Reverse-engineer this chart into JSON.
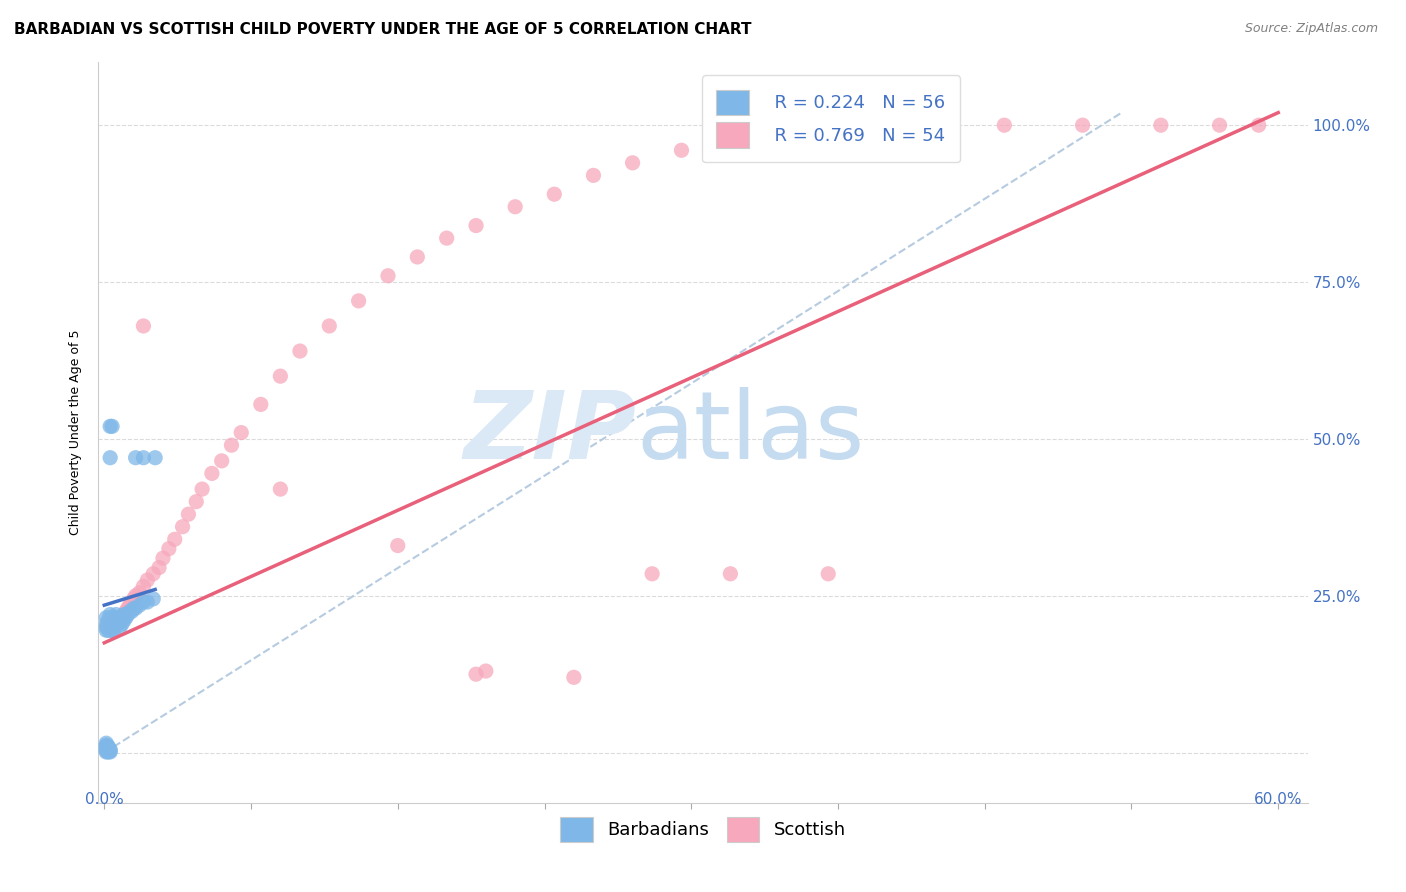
{
  "title": "BARBADIAN VS SCOTTISH CHILD POVERTY UNDER THE AGE OF 5 CORRELATION CHART",
  "source": "Source: ZipAtlas.com",
  "ylabel": "Child Poverty Under the Age of 5",
  "xmin": -0.003,
  "xmax": 0.615,
  "ymin": -0.08,
  "ymax": 1.1,
  "legend_r_barbadian": "R = 0.224",
  "legend_n_barbadian": "N = 56",
  "legend_r_scottish": "R = 0.769",
  "legend_n_scottish": "N = 54",
  "barbadian_color": "#7eb7e8",
  "scottish_color": "#f7a8bc",
  "barbadian_line_color": "#4472c4",
  "scottish_line_color": "#e8607a",
  "ref_line_color": "#aec6dd",
  "background_color": "#ffffff",
  "grid_color": "#cccccc",
  "title_fontsize": 11,
  "axis_label_fontsize": 9,
  "tick_fontsize": 10,
  "legend_fontsize": 13,
  "source_fontsize": 9,
  "barbadian_x": [
    0.001,
    0.001,
    0.001,
    0.001,
    0.002,
    0.002,
    0.002,
    0.002,
    0.003,
    0.003,
    0.003,
    0.003,
    0.003,
    0.003,
    0.003,
    0.004,
    0.004,
    0.004,
    0.004,
    0.004,
    0.005,
    0.005,
    0.005,
    0.005,
    0.005,
    0.006,
    0.006,
    0.006,
    0.007,
    0.007,
    0.007,
    0.008,
    0.008,
    0.008,
    0.009,
    0.009,
    0.01,
    0.01,
    0.01,
    0.011,
    0.011,
    0.012,
    0.013,
    0.014,
    0.015,
    0.016,
    0.018,
    0.02,
    0.022,
    0.025,
    0.003,
    0.004,
    0.003,
    0.016,
    0.02,
    0.026
  ],
  "barbadian_y": [
    0.205,
    0.215,
    0.195,
    0.2,
    0.205,
    0.21,
    0.195,
    0.2,
    0.21,
    0.22,
    0.215,
    0.205,
    0.195,
    0.2,
    0.21,
    0.205,
    0.215,
    0.2,
    0.21,
    0.195,
    0.205,
    0.215,
    0.21,
    0.2,
    0.195,
    0.21,
    0.22,
    0.205,
    0.215,
    0.21,
    0.205,
    0.215,
    0.21,
    0.2,
    0.215,
    0.205,
    0.22,
    0.215,
    0.21,
    0.22,
    0.215,
    0.22,
    0.225,
    0.225,
    0.23,
    0.23,
    0.235,
    0.24,
    0.24,
    0.245,
    0.52,
    0.52,
    0.47,
    0.47,
    0.47,
    0.47
  ],
  "barbadian_y_neg": [
    0.001,
    0.003,
    0.006,
    0.008,
    0.01,
    0.012,
    0.015,
    0.001,
    0.003,
    0.005,
    0.008,
    0.01,
    0.001,
    0.003,
    0.005
  ],
  "barbadian_x_neg": [
    0.001,
    0.001,
    0.001,
    0.001,
    0.001,
    0.001,
    0.001,
    0.002,
    0.002,
    0.002,
    0.002,
    0.002,
    0.003,
    0.003,
    0.003
  ],
  "scottish_x": [
    0.003,
    0.004,
    0.005,
    0.006,
    0.007,
    0.008,
    0.009,
    0.01,
    0.011,
    0.012,
    0.013,
    0.014,
    0.015,
    0.016,
    0.018,
    0.02,
    0.022,
    0.025,
    0.028,
    0.03,
    0.033,
    0.036,
    0.04,
    0.043,
    0.047,
    0.05,
    0.055,
    0.06,
    0.065,
    0.07,
    0.08,
    0.09,
    0.1,
    0.115,
    0.13,
    0.145,
    0.16,
    0.175,
    0.19,
    0.21,
    0.23,
    0.25,
    0.27,
    0.295,
    0.32,
    0.35,
    0.38,
    0.42,
    0.46,
    0.5,
    0.54,
    0.57,
    0.59,
    0.02
  ],
  "scottish_y": [
    0.2,
    0.205,
    0.21,
    0.205,
    0.215,
    0.21,
    0.215,
    0.22,
    0.225,
    0.23,
    0.235,
    0.24,
    0.245,
    0.25,
    0.255,
    0.265,
    0.275,
    0.285,
    0.295,
    0.31,
    0.325,
    0.34,
    0.36,
    0.38,
    0.4,
    0.42,
    0.445,
    0.465,
    0.49,
    0.51,
    0.555,
    0.6,
    0.64,
    0.68,
    0.72,
    0.76,
    0.79,
    0.82,
    0.84,
    0.87,
    0.89,
    0.92,
    0.94,
    0.96,
    0.975,
    0.985,
    0.99,
    0.995,
    1.0,
    1.0,
    1.0,
    1.0,
    1.0,
    0.68
  ],
  "scottish_x_outlier": [
    0.09,
    0.15,
    0.19,
    0.195,
    0.24,
    0.28,
    0.32,
    0.37
  ],
  "scottish_y_outlier": [
    0.42,
    0.33,
    0.125,
    0.13,
    0.12,
    0.285,
    0.285,
    0.285
  ],
  "barbadian_line_x": [
    0.0,
    0.026
  ],
  "barbadian_line_y": [
    0.235,
    0.26
  ],
  "scottish_line_x0": 0.0,
  "scottish_line_y0": 0.175,
  "scottish_line_x1": 0.6,
  "scottish_line_y1": 1.02,
  "ref_line_x0": 0.0,
  "ref_line_y0": 0.0,
  "ref_line_x1": 0.52,
  "ref_line_y1": 1.02
}
